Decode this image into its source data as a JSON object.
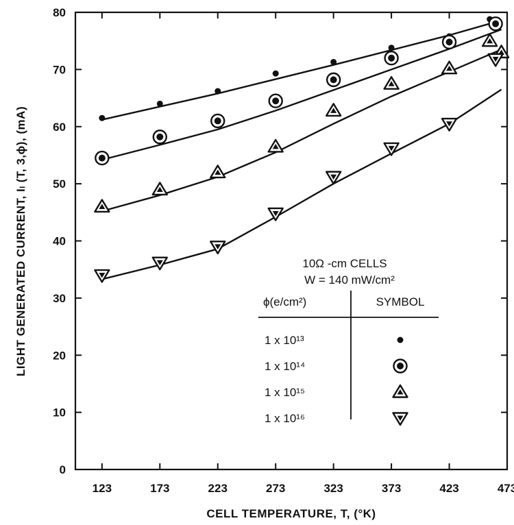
{
  "chart_data": {
    "type": "scatter",
    "xlabel": "CELL TEMPERATURE, T, (°K)",
    "ylabel": "LIGHT GENERATED CURRENT, Iₗ (T, 3,ϕ), (mA)",
    "xlim": [
      100,
      473
    ],
    "ylim": [
      0,
      80
    ],
    "x_ticks": [
      "123",
      "173",
      "223",
      "273",
      "323",
      "373",
      "423",
      "473"
    ],
    "y_ticks": [
      "0",
      "10",
      "20",
      "30",
      "40",
      "50",
      "60",
      "70",
      "80"
    ],
    "grid": false,
    "legend": {
      "placement": "inside-lower-right",
      "title_line1": "10Ω -cm CELLS",
      "title_line2": "W = 140 mW/cm²",
      "col1_header": "ϕ(e/cm²)",
      "col2_header": "SYMBOL",
      "entries": [
        "1 x 10¹³",
        "1 x 10¹⁴",
        "1 x 10¹⁵",
        "1 x 10¹⁶"
      ]
    },
    "series": [
      {
        "symbol": "dot",
        "x": [
          123,
          173,
          223,
          273,
          323,
          373,
          423,
          458
        ],
        "y": [
          61.5,
          64,
          66.2,
          69.3,
          71.3,
          73.8,
          75.8,
          78.8
        ],
        "fit": [
          [
            123,
            61.2
          ],
          [
            223,
            65.8
          ],
          [
            323,
            70.8
          ],
          [
            423,
            76
          ],
          [
            468,
            78.6
          ]
        ]
      },
      {
        "symbol": "circle-dot",
        "x": [
          123,
          173,
          223,
          273,
          323,
          373,
          423,
          463
        ],
        "y": [
          54.5,
          58.2,
          61,
          64.5,
          68.2,
          72,
          74.8,
          78
        ],
        "fit": [
          [
            123,
            54.2
          ],
          [
            173,
            56.8
          ],
          [
            223,
            59.5
          ],
          [
            273,
            62.8
          ],
          [
            323,
            66.4
          ],
          [
            373,
            70
          ],
          [
            423,
            73.6
          ],
          [
            468,
            77
          ]
        ]
      },
      {
        "symbol": "triangle-up",
        "x": [
          123,
          173,
          223,
          273,
          323,
          373,
          423,
          458,
          468
        ],
        "y": [
          46,
          49,
          52,
          56.5,
          62.8,
          67.5,
          70.2,
          75,
          73
        ],
        "fit": [
          [
            123,
            45.2
          ],
          [
            173,
            48
          ],
          [
            223,
            51.2
          ],
          [
            273,
            55.5
          ],
          [
            323,
            60.5
          ],
          [
            373,
            65.3
          ],
          [
            423,
            69.6
          ],
          [
            468,
            73.5
          ]
        ]
      },
      {
        "symbol": "triangle-down",
        "x": [
          123,
          173,
          223,
          273,
          323,
          373,
          423,
          463
        ],
        "y": [
          34,
          36.2,
          39,
          44.8,
          51.2,
          56.2,
          60.5,
          71.8
        ],
        "fit": [
          [
            123,
            33.3
          ],
          [
            173,
            35.8
          ],
          [
            223,
            38.6
          ],
          [
            273,
            44.2
          ],
          [
            323,
            50
          ],
          [
            373,
            55.3
          ],
          [
            423,
            60.5
          ],
          [
            468,
            66.5
          ]
        ]
      }
    ]
  }
}
